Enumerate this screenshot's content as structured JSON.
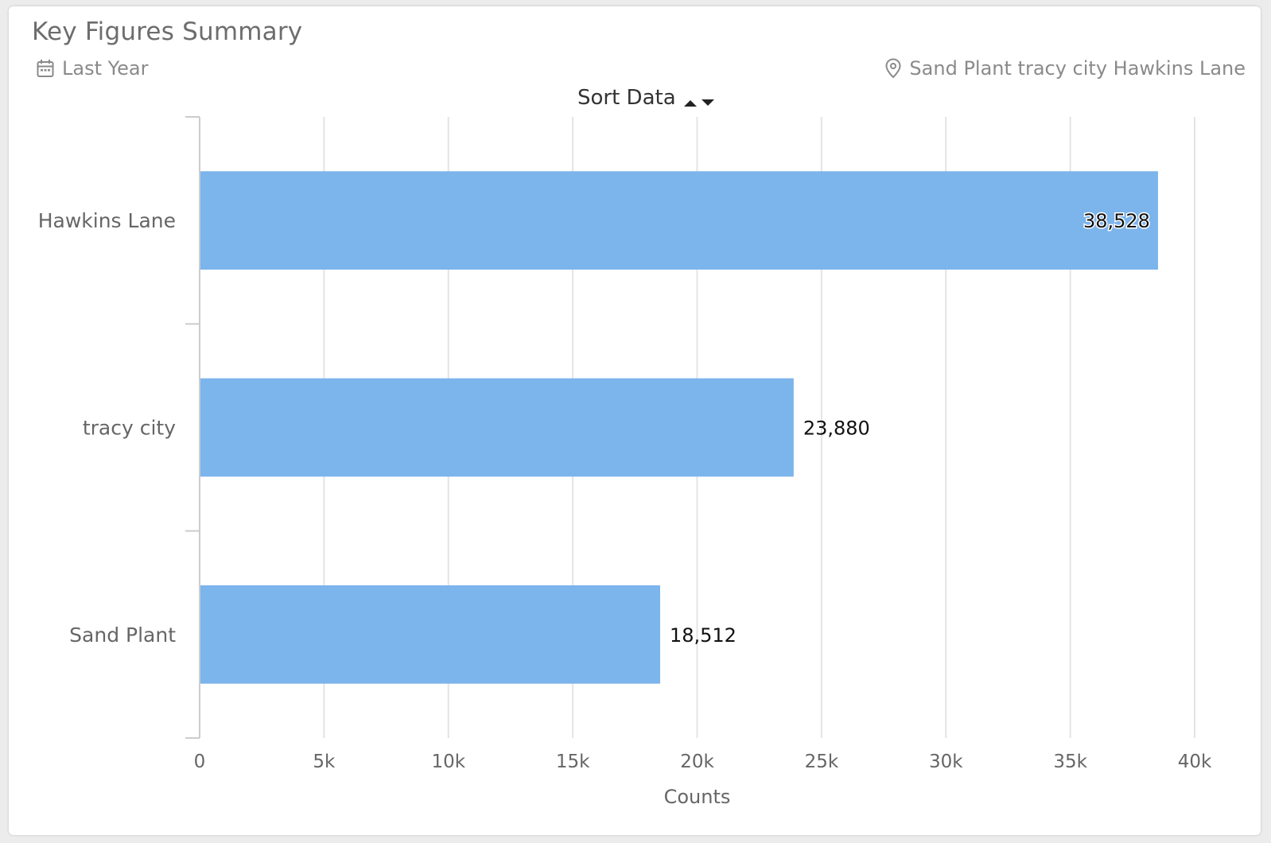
{
  "header": {
    "title": "Key Figures Summary",
    "date_range": "Last Year",
    "location": "Sand Plant tracy city Hawkins Lane",
    "sort_label": "Sort Data"
  },
  "icons": {
    "date": "calendar-icon",
    "location": "map-pin-icon",
    "sort": "sort-up-down-icon"
  },
  "colors": {
    "bar": "#7cb4ec",
    "grid": "#e4e4e4",
    "axis": "#cccccc",
    "label": "#666666",
    "value": "#111111"
  },
  "chart_data": {
    "type": "bar",
    "orientation": "horizontal",
    "categories": [
      "Hawkins Lane",
      "tracy city",
      "Sand Plant"
    ],
    "values": [
      38528,
      23880,
      18512
    ],
    "value_labels": [
      "38,528",
      "23,880",
      "18,512"
    ],
    "title": "Key Figures Summary",
    "xlabel": "Counts",
    "ylabel": "",
    "xlim": [
      0,
      40000
    ],
    "ticks": [
      0,
      5000,
      10000,
      15000,
      20000,
      25000,
      30000,
      35000,
      40000
    ],
    "tick_labels": [
      "0",
      "5k",
      "10k",
      "15k",
      "20k",
      "25k",
      "30k",
      "35k",
      "40k"
    ],
    "grid": true,
    "legend": "none"
  }
}
